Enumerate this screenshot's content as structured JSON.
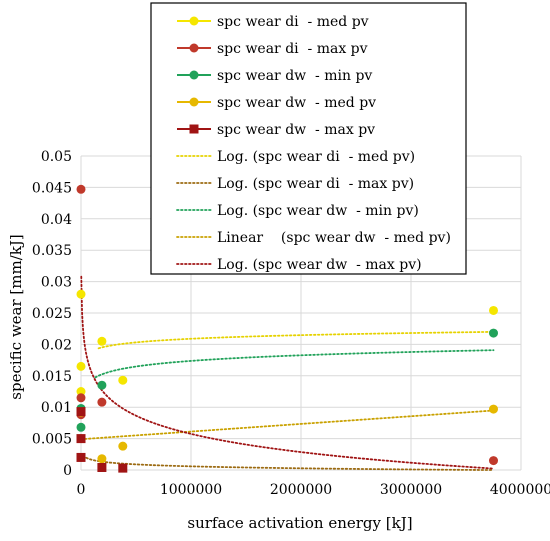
{
  "chart_data": {
    "type": "scatter",
    "xlabel": "surface activation energy [kJ]",
    "ylabel": "specific wear [mm/kJ]",
    "xlim": [
      0,
      4000000
    ],
    "ylim": [
      0,
      0.05
    ],
    "x_ticks": [
      0,
      1000000,
      2000000,
      3000000,
      4000000
    ],
    "x_tick_labels": [
      "0",
      "1000000",
      "2000000",
      "3000000",
      "4000000"
    ],
    "y_ticks": [
      0,
      0.005,
      0.01,
      0.015,
      0.02,
      0.025,
      0.03,
      0.035,
      0.04,
      0.045,
      0.05
    ],
    "y_tick_labels": [
      "0",
      "0.005",
      "0.01",
      "0.015",
      "0.02",
      "0.025",
      "0.03",
      "0.035",
      "0.04",
      "0.045",
      "0.05"
    ],
    "grid": true,
    "legend_placement": "top-right",
    "series": [
      {
        "name": "spc wear di  - med pv",
        "color": "#F5E600",
        "marker": "circle",
        "points": [
          [
            0,
            0.028
          ],
          [
            0,
            0.0165
          ],
          [
            0,
            0.0125
          ],
          [
            190000,
            0.0205
          ],
          [
            380000,
            0.0143
          ],
          [
            3750000,
            0.0254
          ]
        ]
      },
      {
        "name": "spc wear di  - max pv",
        "color": "#C0392B",
        "marker": "circle",
        "points": [
          [
            0,
            0.0447
          ],
          [
            0,
            0.0115
          ],
          [
            0,
            0.0088
          ],
          [
            190000,
            0.0108
          ],
          [
            3750000,
            0.0015
          ]
        ]
      },
      {
        "name": "spc wear dw  - min pv",
        "color": "#21A25A",
        "marker": "circle",
        "points": [
          [
            0,
            0.0098
          ],
          [
            0,
            0.0068
          ],
          [
            190000,
            0.0135
          ],
          [
            3750000,
            0.0218
          ]
        ]
      },
      {
        "name": "spc wear dw  - med pv",
        "color": "#E6B800",
        "marker": "circle",
        "points": [
          [
            0,
            0.0092
          ],
          [
            0,
            0.005
          ],
          [
            190000,
            0.0018
          ],
          [
            380000,
            0.0038
          ],
          [
            3750000,
            0.0097
          ]
        ]
      },
      {
        "name": "spc wear dw  - max pv",
        "color": "#A01414",
        "marker": "square",
        "points": [
          [
            0,
            0.0093
          ],
          [
            0,
            0.005
          ],
          [
            0,
            0.002
          ],
          [
            190000,
            0.0004
          ],
          [
            380000,
            0.0003
          ]
        ]
      }
    ],
    "trendlines": [
      {
        "name": "Log. (spc wear di  - med pv)",
        "color": "#E6D200",
        "type": "log",
        "a": 0.00083,
        "b": 0.00943,
        "x_start": 160000,
        "x_end": 3750000
      },
      {
        "name": "Log. (spc wear di  - max pv)",
        "color": "#9C6B12",
        "type": "log",
        "a": -0.00045,
        "b": 0.0068,
        "x_start": 20000,
        "x_end": 3750000
      },
      {
        "name": "Log. (spc wear dw  - min pv)",
        "color": "#21A25A",
        "type": "log",
        "a": 0.00129,
        "b": -0.00045,
        "x_start": 130000,
        "x_end": 3750000
      },
      {
        "name": "Linear    (spc wear dw  - med pv)",
        "color": "#C9A100",
        "type": "linear",
        "a": 1.22e-09,
        "b": 0.0049,
        "x_start": 0,
        "x_end": 3750000
      },
      {
        "name": "Log. (spc wear dw  - max pv)",
        "color": "#A01414",
        "type": "log",
        "a": -0.00418,
        "b": 0.0635,
        "x_start": 2500,
        "x_end": 3750000
      }
    ]
  }
}
